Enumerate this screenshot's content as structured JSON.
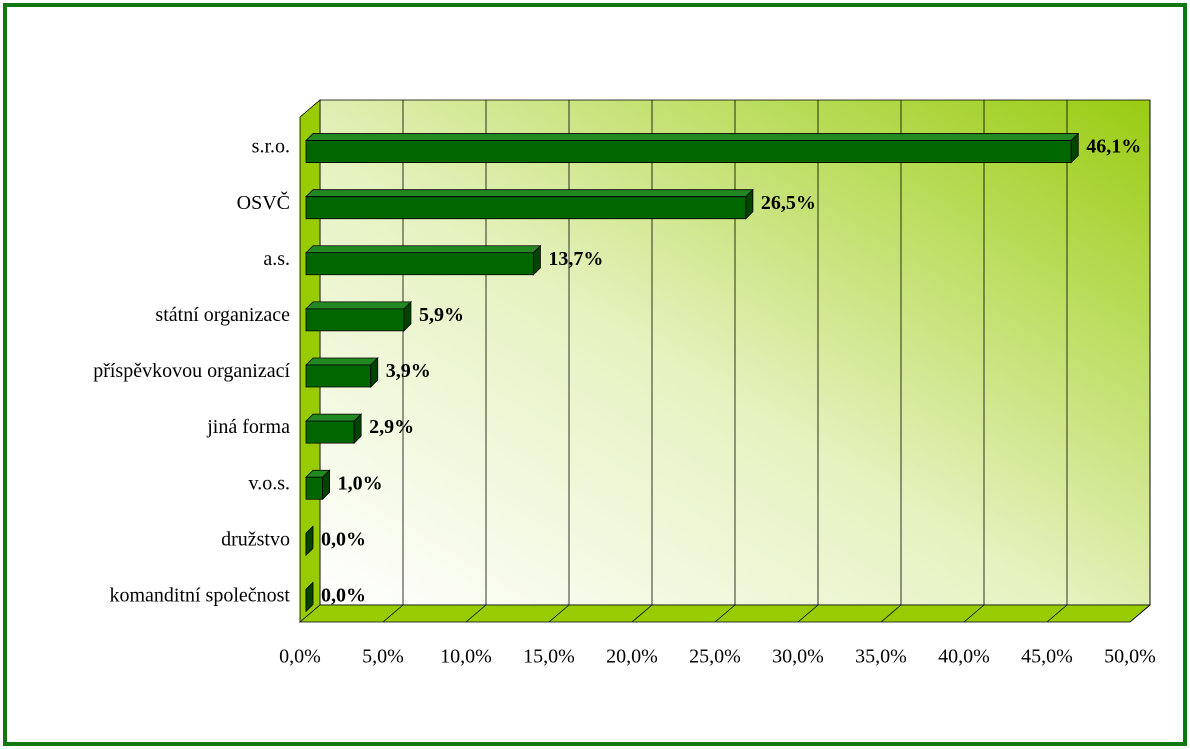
{
  "chart_data": {
    "type": "bar",
    "orientation": "horizontal",
    "categories": [
      "s.r.o.",
      "OSVČ",
      "a.s.",
      "státní organizace",
      "příspěvkovou organizací",
      "jiná forma",
      "v.o.s.",
      "družstvo",
      "komanditní společnost"
    ],
    "values": [
      46.1,
      26.5,
      13.7,
      5.9,
      3.9,
      2.9,
      1.0,
      0.0,
      0.0
    ],
    "value_labels": [
      "46,1%",
      "26,5%",
      "13,7%",
      "5,9%",
      "3,9%",
      "2,9%",
      "1,0%",
      "0,0%",
      "0,0%"
    ],
    "color": "#006600",
    "xlim": [
      0,
      50
    ],
    "xticks": [
      {
        "value": 0,
        "label": "0,0%"
      },
      {
        "value": 5,
        "label": "5,0%"
      },
      {
        "value": 10,
        "label": "10,0%"
      },
      {
        "value": 15,
        "label": "15,0%"
      },
      {
        "value": 20,
        "label": "20,0%"
      },
      {
        "value": 25,
        "label": "25,0%"
      },
      {
        "value": 30,
        "label": "30,0%"
      },
      {
        "value": 35,
        "label": "35,0%"
      },
      {
        "value": 40,
        "label": "40,0%"
      },
      {
        "value": 45,
        "label": "45,0%"
      },
      {
        "value": 50,
        "label": "50,0%"
      }
    ],
    "grid": true
  }
}
